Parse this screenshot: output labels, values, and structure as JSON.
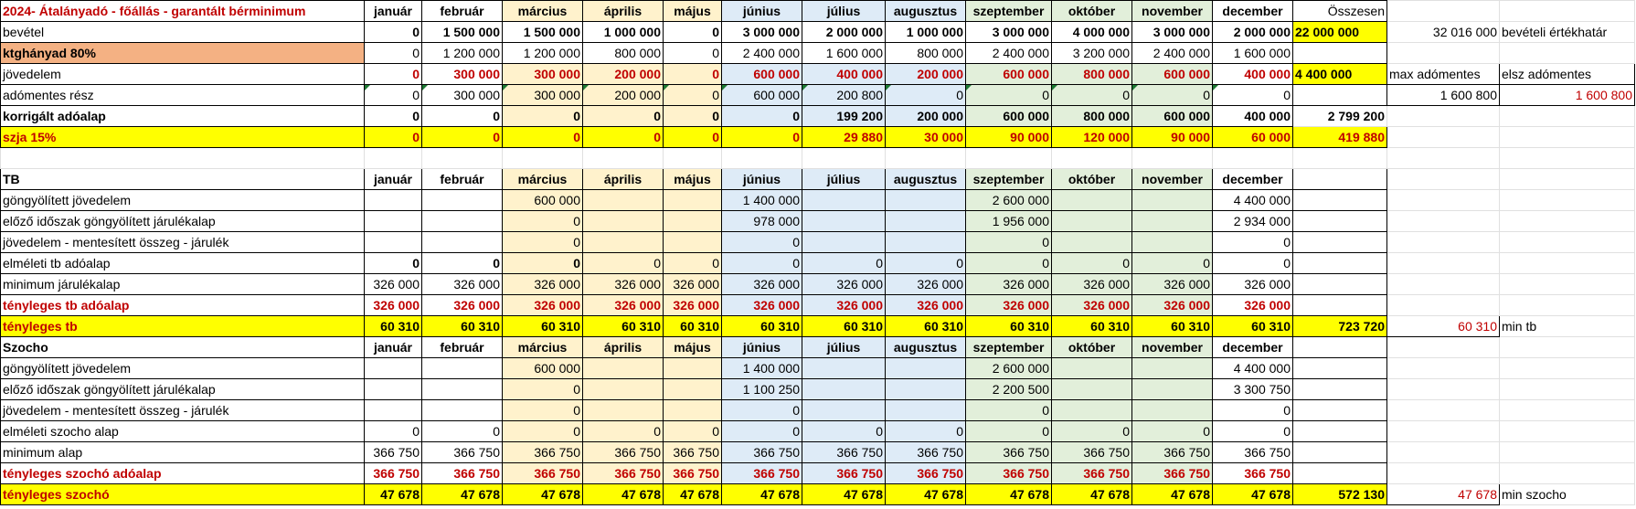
{
  "sheet": {
    "columns": [
      {
        "key": "label",
        "width": 398
      },
      {
        "key": "m1",
        "width": 63
      },
      {
        "key": "m2",
        "width": 88
      },
      {
        "key": "m3",
        "width": 88
      },
      {
        "key": "m4",
        "width": 88
      },
      {
        "key": "m5",
        "width": 64
      },
      {
        "key": "m6",
        "width": 88
      },
      {
        "key": "m7",
        "width": 91
      },
      {
        "key": "m8",
        "width": 88
      },
      {
        "key": "m9",
        "width": 94
      },
      {
        "key": "m10",
        "width": 88
      },
      {
        "key": "m11",
        "width": 88
      },
      {
        "key": "m12",
        "width": 88
      },
      {
        "key": "total",
        "width": 103
      },
      {
        "key": "extra1",
        "width": 123
      },
      {
        "key": "extra2",
        "width": 148
      }
    ],
    "quarter_fill": [
      "",
      "",
      "",
      "q2",
      "q2",
      "q2",
      "q3",
      "q3",
      "q3",
      "q4",
      "q4",
      "q4",
      "",
      "",
      ""
    ],
    "rows": [
      {
        "label": "2024- Átalányadó - főállás - garantált bérminimum",
        "labelStyle": "b red",
        "cellStyle": "b c",
        "values": [
          "január",
          "február",
          "március",
          "április",
          "május",
          "június",
          "július",
          "augusztus",
          "szeptember",
          "október",
          "november",
          "december",
          "Összesen",
          "",
          ""
        ],
        "quarters": true,
        "borderThrough": 13
      },
      {
        "label": "bevétel",
        "cellStyle": "b num",
        "values": [
          "0",
          "1 500 000",
          "1 500 000",
          "1 000 000",
          "0",
          "3 000 000",
          "2 000 000",
          "1 000 000",
          "3 000 000",
          "4 000 000",
          "3 000 000",
          "2 000 000",
          "22 000 000",
          "32 016 000",
          "bevételi értékhatár"
        ],
        "totalStyle": "yel b",
        "extraStyles": [
          "num",
          ""
        ],
        "borderThrough": 13
      },
      {
        "label": "ktghányad 80%",
        "labelStyle": "b orange",
        "cellStyle": "num",
        "values": [
          "0",
          "1 200 000",
          "1 200 000",
          "800 000",
          "0",
          "2 400 000",
          "1 600 000",
          "800 000",
          "2 400 000",
          "3 200 000",
          "2 400 000",
          "1 600 000",
          "",
          "",
          ""
        ],
        "borderThrough": 13
      },
      {
        "label": "jövedelem",
        "cellStyle": "b num red",
        "values": [
          "0",
          "300 000",
          "300 000",
          "200 000",
          "0",
          "600 000",
          "400 000",
          "200 000",
          "600 000",
          "800 000",
          "600 000",
          "400 000",
          "4 400 000",
          "max adómentes",
          "elsz adómentes"
        ],
        "totalStyle": "yel b",
        "extraStyles": [
          "bl",
          ""
        ],
        "quarters": true,
        "borderThrough": 15,
        "totalBlack": true
      },
      {
        "label": "adómentes rész",
        "cellStyle": "num tri",
        "values": [
          "0",
          "300 000",
          "300 000",
          "200 000",
          "0",
          "600 000",
          "200 800",
          "0",
          "0",
          "0",
          "0",
          "0",
          "",
          "1 600 800",
          "1 600 800"
        ],
        "quarters": true,
        "extraStyles": [
          "num bl",
          "num red bl"
        ],
        "borderThrough": 15
      },
      {
        "label": "korrigált adóalap",
        "labelStyle": "b",
        "cellStyle": "b num",
        "values": [
          "0",
          "0",
          "0",
          "0",
          "0",
          "0",
          "199 200",
          "200 000",
          "600 000",
          "800 000",
          "600 000",
          "400 000",
          "2 799 200",
          "",
          ""
        ],
        "quarters": true,
        "totalStyle": "b num",
        "borderThrough": 12
      },
      {
        "label": "szja 15%",
        "labelStyle": "b yel red",
        "cellStyle": "b num yel red",
        "values": [
          "0",
          "0",
          "0",
          "0",
          "0",
          "0",
          "29 880",
          "30 000",
          "90 000",
          "120 000",
          "90 000",
          "60 000",
          "419 880",
          "",
          ""
        ],
        "totalStyle": "b num yel red",
        "allYellow": true,
        "borderThrough": 13
      },
      {
        "label": "",
        "cellStyle": "",
        "values": [
          "",
          "",
          "",
          "",
          "",
          "",
          "",
          "",
          "",
          "",
          "",
          "",
          "",
          "",
          ""
        ]
      },
      {
        "label": "TB",
        "labelStyle": "b",
        "cellStyle": "b c",
        "values": [
          "január",
          "február",
          "március",
          "április",
          "május",
          "június",
          "július",
          "augusztus",
          "szeptember",
          "október",
          "november",
          "december",
          "",
          "",
          ""
        ],
        "quarters": true,
        "borderThrough": 13
      },
      {
        "label": "göngyölített jövedelem",
        "cellStyle": "num",
        "values": [
          "",
          "",
          "600 000",
          "",
          "",
          "1 400 000",
          "",
          "",
          "2 600 000",
          "",
          "",
          "4 400 000",
          "",
          "",
          ""
        ],
        "quarters": true,
        "borderThrough": 13
      },
      {
        "label": "előző időszak göngyölített járulékalap",
        "cellStyle": "num",
        "values": [
          "",
          "",
          "0",
          "",
          "",
          "978 000",
          "",
          "",
          "1 956 000",
          "",
          "",
          "2 934 000",
          "",
          "",
          ""
        ],
        "quarters": true,
        "borderThrough": 13
      },
      {
        "label": "jövedelem - mentesített összeg - járulék",
        "cellStyle": "num",
        "values": [
          "",
          "",
          "0",
          "",
          "",
          "0",
          "",
          "",
          "0",
          "",
          "",
          "0",
          "",
          "",
          ""
        ],
        "quarters": true,
        "borderThrough": 13
      },
      {
        "label": "elméleti tb adóalap",
        "cellStyle": "num",
        "values": [
          "0",
          "0",
          "0",
          "0",
          "0",
          "0",
          "0",
          "0",
          "0",
          "0",
          "0",
          "0",
          "",
          "",
          ""
        ],
        "quarters": true,
        "boldCols": [
          0,
          1,
          2
        ],
        "borderThrough": 13
      },
      {
        "label": "minimum járulékalap",
        "cellStyle": "num",
        "values": [
          "326 000",
          "326 000",
          "326 000",
          "326 000",
          "326 000",
          "326 000",
          "326 000",
          "326 000",
          "326 000",
          "326 000",
          "326 000",
          "326 000",
          "",
          "",
          ""
        ],
        "quarters": true,
        "borderThrough": 13
      },
      {
        "label": "tényleges tb adóalap",
        "labelStyle": "b red",
        "cellStyle": "b num red",
        "values": [
          "326 000",
          "326 000",
          "326 000",
          "326 000",
          "326 000",
          "326 000",
          "326 000",
          "326 000",
          "326 000",
          "326 000",
          "326 000",
          "326 000",
          "",
          "",
          ""
        ],
        "quarters": true,
        "borderThrough": 13
      },
      {
        "label": "tényleges tb",
        "labelStyle": "b yel red",
        "cellStyle": "b num yel",
        "values": [
          "60 310",
          "60 310",
          "60 310",
          "60 310",
          "60 310",
          "60 310",
          "60 310",
          "60 310",
          "60 310",
          "60 310",
          "60 310",
          "60 310",
          "723 720",
          "60 310",
          "min tb"
        ],
        "totalStyle": "b num yel",
        "extraStyles": [
          "num red bl",
          ""
        ],
        "allYellow": true,
        "borderThrough": 14
      },
      {
        "label": "Szocho",
        "labelStyle": "b",
        "cellStyle": "b c",
        "values": [
          "január",
          "február",
          "március",
          "április",
          "május",
          "június",
          "július",
          "augusztus",
          "szeptember",
          "október",
          "november",
          "december",
          "",
          "",
          ""
        ],
        "quarters": true,
        "borderThrough": 13
      },
      {
        "label": "göngyölített jövedelem",
        "cellStyle": "num",
        "values": [
          "",
          "",
          "600 000",
          "",
          "",
          "1 400 000",
          "",
          "",
          "2 600 000",
          "",
          "",
          "4 400 000",
          "",
          "",
          ""
        ],
        "quarters": true,
        "borderThrough": 13
      },
      {
        "label": "előző időszak göngyölített járulékalap",
        "cellStyle": "num",
        "values": [
          "",
          "",
          "0",
          "",
          "",
          "1 100 250",
          "",
          "",
          "2 200 500",
          "",
          "",
          "3 300 750",
          "",
          "",
          ""
        ],
        "quarters": true,
        "borderThrough": 13
      },
      {
        "label": "jövedelem - mentesített összeg - járulék",
        "cellStyle": "num",
        "values": [
          "",
          "",
          "0",
          "",
          "",
          "0",
          "",
          "",
          "0",
          "",
          "",
          "0",
          "",
          "",
          ""
        ],
        "quarters": true,
        "borderThrough": 13
      },
      {
        "label": "elméleti szocho alap",
        "cellStyle": "num",
        "values": [
          "0",
          "0",
          "0",
          "0",
          "0",
          "0",
          "0",
          "0",
          "0",
          "0",
          "0",
          "0",
          "",
          "",
          ""
        ],
        "quarters": true,
        "borderThrough": 13
      },
      {
        "label": "minimum alap",
        "cellStyle": "num",
        "values": [
          "366 750",
          "366 750",
          "366 750",
          "366 750",
          "366 750",
          "366 750",
          "366 750",
          "366 750",
          "366 750",
          "366 750",
          "366 750",
          "366 750",
          "",
          "",
          ""
        ],
        "quarters": true,
        "borderThrough": 13
      },
      {
        "label": "tényleges szochó adóalap",
        "labelStyle": "b red",
        "cellStyle": "b num red",
        "values": [
          "366 750",
          "366 750",
          "366 750",
          "366 750",
          "366 750",
          "366 750",
          "366 750",
          "366 750",
          "366 750",
          "366 750",
          "366 750",
          "366 750",
          "",
          "",
          ""
        ],
        "quarters": true,
        "borderThrough": 13
      },
      {
        "label": "tényleges szochó",
        "labelStyle": "b yel red",
        "cellStyle": "b num yel",
        "values": [
          "47 678",
          "47 678",
          "47 678",
          "47 678",
          "47 678",
          "47 678",
          "47 678",
          "47 678",
          "47 678",
          "47 678",
          "47 678",
          "47 678",
          "572 130",
          "47 678",
          "min szocho"
        ],
        "totalStyle": "b num yel",
        "extraStyles": [
          "num red bl",
          ""
        ],
        "allYellow": true,
        "borderThrough": 14
      }
    ]
  }
}
